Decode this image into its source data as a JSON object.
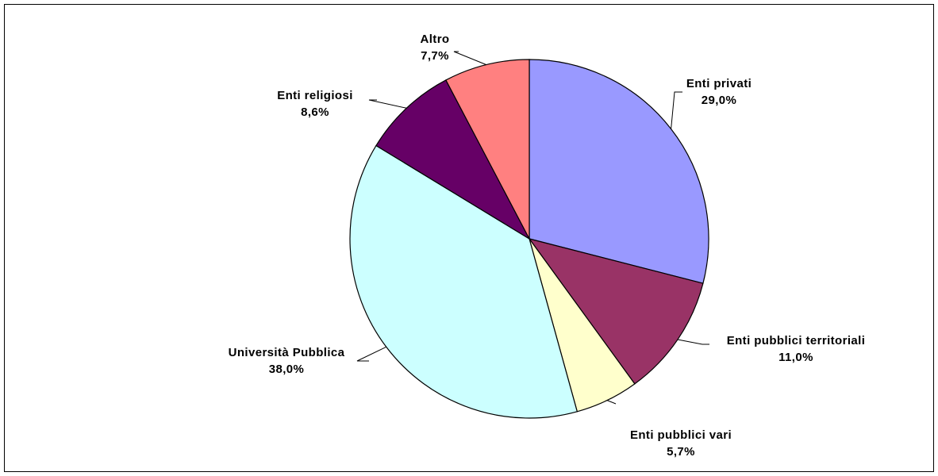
{
  "chart_data": {
    "type": "pie",
    "start_angle_deg": 0,
    "direction": "clockwise",
    "slices": [
      {
        "label": "Enti privati",
        "value": 29.0,
        "display": "29,0%",
        "color": "#9999ff"
      },
      {
        "label": "Enti pubblici territoriali",
        "value": 11.0,
        "display": "11,0%",
        "color": "#993366"
      },
      {
        "label": "Enti pubblici vari",
        "value": 5.7,
        "display": "5,7%",
        "color": "#ffffcc"
      },
      {
        "label": "Università Pubblica",
        "value": 38.0,
        "display": "38,0%",
        "color": "#ccffff"
      },
      {
        "label": "Enti religiosi",
        "value": 8.6,
        "display": "8,6%",
        "color": "#660066"
      },
      {
        "label": "Altro",
        "value": 7.7,
        "display": "7,7%",
        "color": "#ff8080"
      }
    ],
    "legend": false
  }
}
